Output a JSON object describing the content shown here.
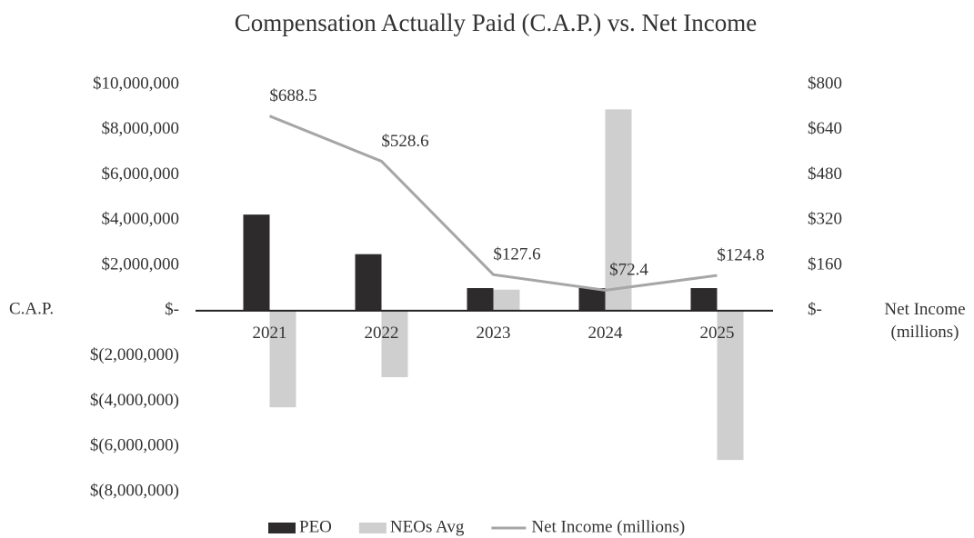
{
  "chart_data": {
    "type": "bar",
    "title": "Compensation Actually Paid (C.A.P.) vs. Net Income",
    "y_label": "C.A.P.",
    "y2_label": "Net Income (millions)",
    "categories": [
      "2021",
      "2022",
      "2023",
      "2024",
      "2025"
    ],
    "series": [
      {
        "name": "PEO",
        "color": "#2e2b2c",
        "values": [
          4250000,
          2500000,
          1000000,
          1000000,
          1000000
        ]
      },
      {
        "name": "NEOs Avg",
        "color": "#cfcfcf",
        "values": [
          -4270000,
          -2940000,
          930000,
          8900000,
          -6600000
        ]
      },
      {
        "name": "Net Income (millions)",
        "type": "line",
        "axis": "y2",
        "color": "#a6a6a6",
        "values": [
          688.5,
          528.6,
          127.6,
          72.4,
          124.8
        ],
        "value_labels": [
          "$688.5",
          "$528.6",
          "$127.6",
          "$72.4",
          "$124.8"
        ]
      }
    ],
    "ylim": [
      -8000000,
      10000000
    ],
    "yticks": [
      {
        "value": -8000000,
        "label": "$(8,000,000)"
      },
      {
        "value": -6000000,
        "label": "$(6,000,000)"
      },
      {
        "value": -4000000,
        "label": "$(4,000,000)"
      },
      {
        "value": -2000000,
        "label": "$(2,000,000)"
      },
      {
        "value": 0,
        "label": "$-"
      },
      {
        "value": 2000000,
        "label": "$2,000,000"
      },
      {
        "value": 4000000,
        "label": "$4,000,000"
      },
      {
        "value": 6000000,
        "label": "$6,000,000"
      },
      {
        "value": 8000000,
        "label": "$8,000,000"
      },
      {
        "value": 10000000,
        "label": "$10,000,000"
      }
    ],
    "y2lim": [
      -640,
      800
    ],
    "y2ticks": [
      {
        "value": 0,
        "label": "$-"
      },
      {
        "value": 160,
        "label": "$160"
      },
      {
        "value": 320,
        "label": "$320"
      },
      {
        "value": 480,
        "label": "$480"
      },
      {
        "value": 640,
        "label": "$640"
      },
      {
        "value": 800,
        "label": "$800"
      }
    ],
    "grid": false
  }
}
